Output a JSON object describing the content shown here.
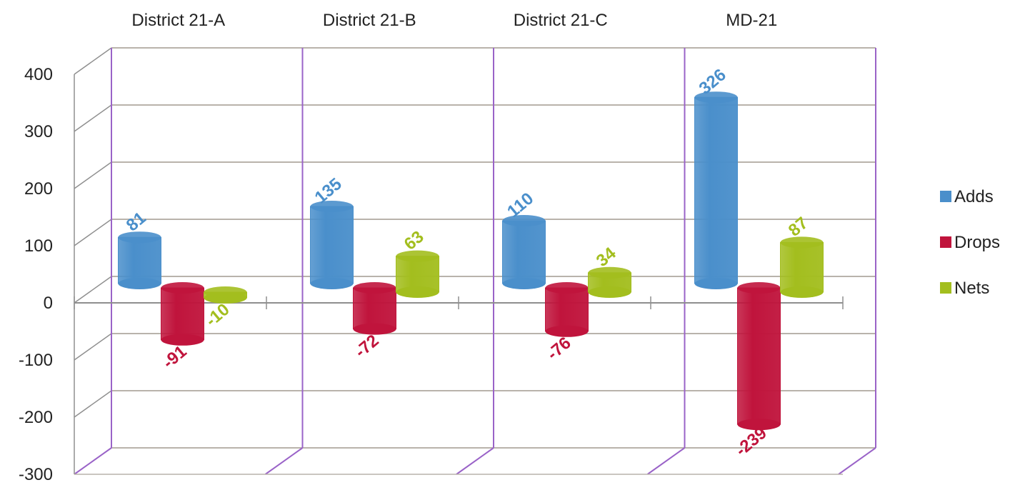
{
  "chart_data": {
    "type": "bar",
    "categories": [
      "District 21-A",
      "District 21-B",
      "District 21-C",
      "MD-21"
    ],
    "series": [
      {
        "name": "Adds",
        "values": [
          81,
          135,
          110,
          326
        ],
        "color": "#4A8FCB"
      },
      {
        "name": "Drops",
        "values": [
          -91,
          -72,
          -76,
          -239
        ],
        "color": "#C0143C"
      },
      {
        "name": "Nets",
        "values": [
          -10,
          63,
          34,
          87
        ],
        "color": "#A3BE1E"
      }
    ],
    "title": "",
    "xlabel": "",
    "ylabel": "",
    "ylim": [
      -300,
      400
    ],
    "yticks": [
      "400",
      "300",
      "200",
      "100",
      "0",
      "-100",
      "-200",
      "-300"
    ],
    "grid": true,
    "legend_position": "right",
    "category_labels_position": "top"
  }
}
